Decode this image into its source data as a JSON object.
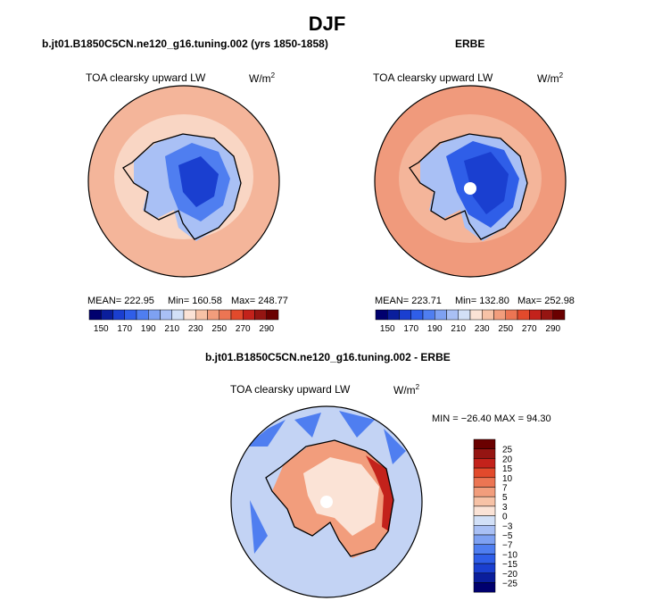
{
  "page": {
    "title": "DJF"
  },
  "chart_data": [
    {
      "type": "heatmap",
      "projection": "south polar stereographic",
      "panel_title": "b.jt01.B1850C5CN.ne120_g16.tuning.002 (yrs 1850-1858)",
      "variable": "TOA clearsky upward LW",
      "units_base": "W/m",
      "units_exp": "2",
      "stats": {
        "mean_label": "MEAN=",
        "mean": "222.95",
        "min_label": "Min=",
        "min": "160.58",
        "max_label": "Max=",
        "max": "248.77"
      },
      "levels": [
        150,
        160,
        170,
        180,
        190,
        200,
        210,
        220,
        230,
        240,
        250,
        260,
        270,
        280,
        290
      ],
      "colorbar_ticks": [
        "150",
        "170",
        "190",
        "210",
        "230",
        "250",
        "270",
        "290"
      ]
    },
    {
      "type": "heatmap",
      "projection": "south polar stereographic",
      "panel_title": "ERBE",
      "variable": "TOA clearsky upward LW",
      "units_base": "W/m",
      "units_exp": "2",
      "stats": {
        "mean_label": "MEAN=",
        "mean": "223.71",
        "min_label": "Min=",
        "min": "132.80",
        "max_label": "Max=",
        "max": "252.98"
      },
      "levels": [
        150,
        160,
        170,
        180,
        190,
        200,
        210,
        220,
        230,
        240,
        250,
        260,
        270,
        280,
        290
      ],
      "colorbar_ticks": [
        "150",
        "170",
        "190",
        "210",
        "230",
        "250",
        "270",
        "290"
      ]
    },
    {
      "type": "heatmap",
      "projection": "south polar stereographic",
      "panel_title": "b.jt01.B1850C5CN.ne120_g16.tuning.002 - ERBE",
      "variable": "TOA clearsky upward LW",
      "units_base": "W/m",
      "units_exp": "2",
      "stats_text": "MIN = −26.40 MAX =  94.30",
      "levels": [
        -25,
        -20,
        -15,
        -10,
        -7,
        -5,
        -3,
        0,
        3,
        5,
        7,
        10,
        15,
        20,
        25
      ],
      "colorbar_ticks": [
        "25",
        "20",
        "15",
        "10",
        "7",
        "5",
        "3",
        "0",
        "−3",
        "−5",
        "−7",
        "−10",
        "−15",
        "−20",
        "−25"
      ]
    }
  ],
  "colors": {
    "palette": [
      "#00006e",
      "#0a1e9c",
      "#1a3fd0",
      "#2f5ee8",
      "#4f7ef0",
      "#7ea1f2",
      "#a9c0f5",
      "#d2e0f7",
      "#fbe3d6",
      "#f7c2a6",
      "#f29d7c",
      "#ec7553",
      "#e24a2c",
      "#c3221b",
      "#951512",
      "#6a0000"
    ],
    "ocean_model": "#f4b59a",
    "ocean_model_inner": "#f9d6c4",
    "ocean_erbe": "#f09a7c",
    "diff_ocean": "#c3d3f4"
  }
}
